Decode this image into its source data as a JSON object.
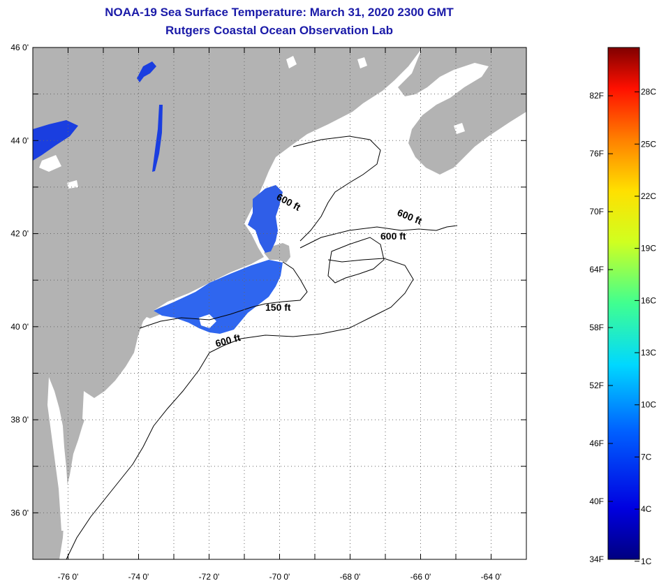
{
  "header": {
    "title": "NOAA-19 Sea Surface Temperature:  March 31, 2020 2300 GMT",
    "subtitle": "Rutgers Coastal Ocean Observation Lab"
  },
  "map": {
    "lon_range": [
      -77,
      -63
    ],
    "lat_range": [
      35,
      46
    ],
    "lon_ticks": [
      "-76 0'",
      "-74 0'",
      "-72 0'",
      "-70 0'",
      "-68 0'",
      "-66 0'",
      "-64 0'"
    ],
    "lat_ticks": [
      "46 0'",
      "44 0'",
      "42 0'",
      "40 0'",
      "38 0'",
      "36 0'"
    ],
    "grid": "dotted",
    "colors": {
      "land": "#b3b3b3",
      "ocean": "#ffffff",
      "sst_dark": "#2050e6",
      "sst_mid": "#3a70f0",
      "contour": "#000000"
    },
    "contour_labels": [
      "600 ft",
      "600 ft",
      "600 ft",
      "150 ft",
      "600 ft"
    ]
  },
  "colorbar": {
    "fahrenheit_labels": [
      "82F",
      "76F",
      "70F",
      "64F",
      "58F",
      "52F",
      "46F",
      "40F",
      "34F"
    ],
    "celsius_labels": [
      "28C",
      "25C",
      "22C",
      "19C",
      "16C",
      "13C",
      "10C",
      "7C",
      "4C",
      "1C"
    ],
    "colors": [
      "#000080",
      "#0000ff",
      "#0080ff",
      "#00ffff",
      "#80ff80",
      "#ffff00",
      "#ff8000",
      "#ff0000",
      "#800000"
    ]
  }
}
